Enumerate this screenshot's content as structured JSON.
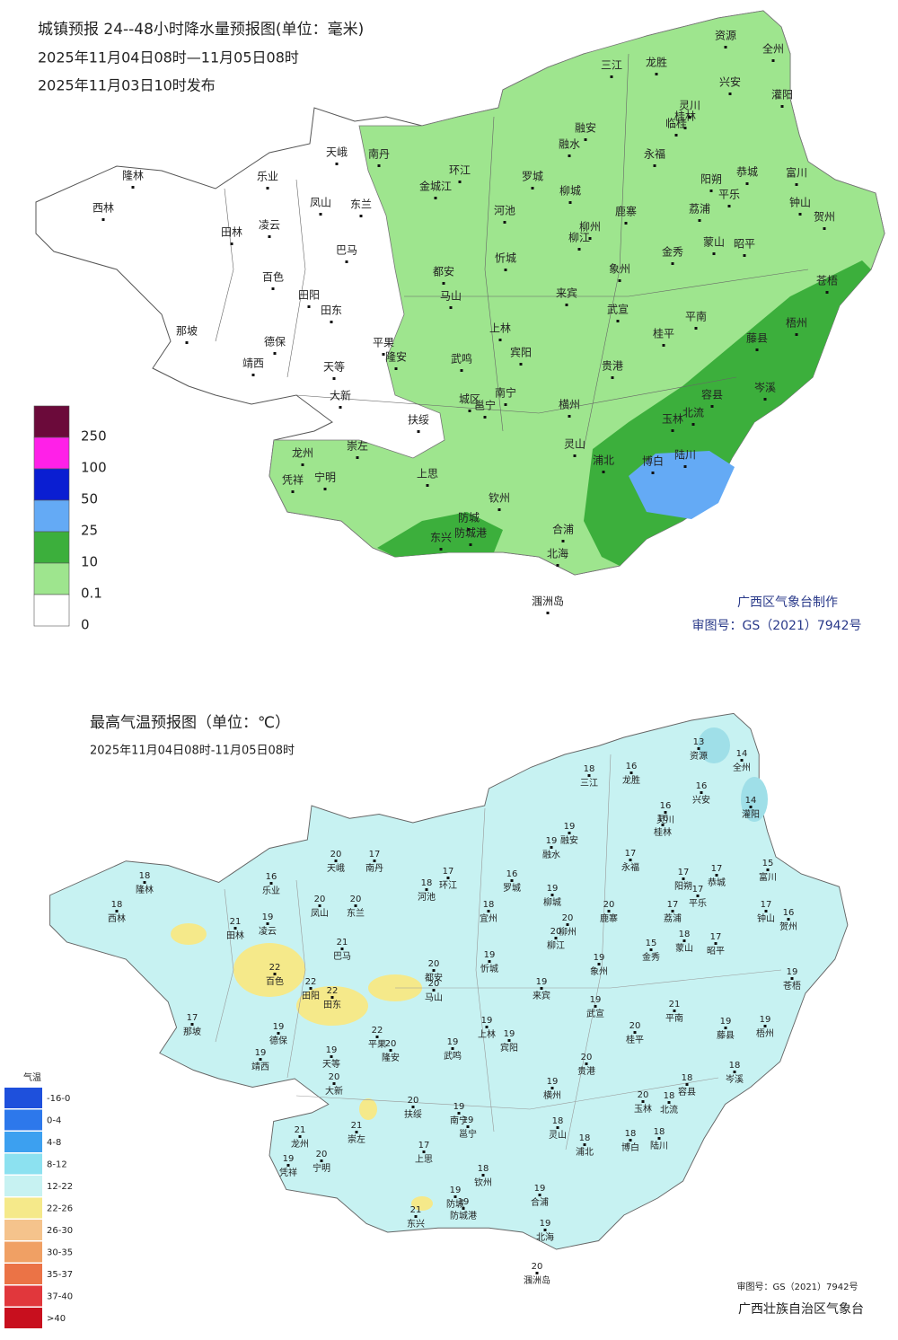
{
  "precipitation_map": {
    "title": "城镇预报 24--48小时降水量预报图(单位：毫米)",
    "period": "2025年11月04日08时—11月05日08时",
    "issued": "2025年11月03日10时发布",
    "legend": {
      "labels": [
        "250",
        "100",
        "50",
        "25",
        "10",
        "0.1",
        "0"
      ]
    },
    "cities": [
      "天峨",
      "南丹",
      "隆林",
      "乐业",
      "环江",
      "罗城",
      "西林",
      "凤山",
      "东兰",
      "金城江",
      "河池",
      "田林",
      "凌云",
      "巴马",
      "忻城",
      "百色",
      "都安",
      "马山",
      "田阳",
      "田东",
      "那坡",
      "德保",
      "平果",
      "隆安",
      "靖西",
      "天等",
      "大新",
      "武鸣",
      "宾阳",
      "上林",
      "城区",
      "南宁",
      "邕宁",
      "横州",
      "扶绥",
      "龙州",
      "崇左",
      "凭祥",
      "宁明",
      "上思",
      "钦州",
      "防城",
      "东兴",
      "防城港",
      "合浦",
      "北海",
      "灵山",
      "浦北",
      "博白",
      "陆川",
      "玉林",
      "北流",
      "容县",
      "岑溪",
      "藤县",
      "梧州",
      "苍梧",
      "贵港",
      "桂平",
      "平南",
      "武宣",
      "来宾",
      "象州",
      "金秀",
      "蒙山",
      "昭平",
      "荔浦",
      "平乐",
      "阳朔",
      "恭城",
      "富川",
      "钟山",
      "贺州",
      "柳城",
      "柳州",
      "柳江",
      "鹿寨",
      "融水",
      "融安",
      "三江",
      "龙胜",
      "资源",
      "全州",
      "兴安",
      "灌阳",
      "灵川",
      "桂林",
      "临桂",
      "永福",
      "涠洲岛"
    ],
    "credit": "广西区气象台制作",
    "approval": "审图号：GS（2021）7942号"
  },
  "temperature_map": {
    "title": "最高气温预报图（单位：℃）",
    "period": "2025年11月04日08时-11月05日08时",
    "legend": {
      "title": "气温",
      "labels": [
        "-16-0",
        "0-4",
        "4-8",
        "8-12",
        "12-22",
        "22-26",
        "26-30",
        "30-35",
        "35-37",
        "37-40",
        ">40"
      ]
    },
    "stations": [
      {
        "name": "资源",
        "value": 13
      },
      {
        "name": "全州",
        "value": 14
      },
      {
        "name": "三江",
        "value": 18
      },
      {
        "name": "龙胜",
        "value": 16
      },
      {
        "name": "兴安",
        "value": 16
      },
      {
        "name": "灌阳",
        "value": 14
      },
      {
        "name": "灵川",
        "value": 16
      },
      {
        "name": "桂林",
        "value": 16
      },
      {
        "name": "融安",
        "value": 19
      },
      {
        "name": "融水",
        "value": 19
      },
      {
        "name": "永福",
        "value": 17
      },
      {
        "name": "天峨",
        "value": 20
      },
      {
        "name": "南丹",
        "value": 17
      },
      {
        "name": "隆林",
        "value": 18
      },
      {
        "name": "乐业",
        "value": 16
      },
      {
        "name": "河池",
        "value": 18
      },
      {
        "name": "环江",
        "value": 17
      },
      {
        "name": "罗城",
        "value": 16
      },
      {
        "name": "恭城",
        "value": 17
      },
      {
        "name": "富川",
        "value": 15
      },
      {
        "name": "阳朔",
        "value": 17
      },
      {
        "name": "西林",
        "value": 18
      },
      {
        "name": "凤山",
        "value": 20
      },
      {
        "name": "东兰",
        "value": 20
      },
      {
        "name": "宜州",
        "value": 18
      },
      {
        "name": "柳城",
        "value": 19
      },
      {
        "name": "鹿寨",
        "value": 20
      },
      {
        "name": "平乐",
        "value": 17
      },
      {
        "name": "荔浦",
        "value": 17
      },
      {
        "name": "钟山",
        "value": 17
      },
      {
        "name": "贺州",
        "value": 16
      },
      {
        "name": "田林",
        "value": 21
      },
      {
        "name": "凌云",
        "value": 19
      },
      {
        "name": "巴马",
        "value": 21
      },
      {
        "name": "柳州",
        "value": 20
      },
      {
        "name": "柳江",
        "value": 20
      },
      {
        "name": "金秀",
        "value": 15
      },
      {
        "name": "蒙山",
        "value": 18
      },
      {
        "name": "昭平",
        "value": 17
      },
      {
        "name": "都安",
        "value": 20
      },
      {
        "name": "马山",
        "value": 20
      },
      {
        "name": "忻城",
        "value": 19
      },
      {
        "name": "象州",
        "value": 19
      },
      {
        "name": "苍梧",
        "value": 19
      },
      {
        "name": "百色",
        "value": 22
      },
      {
        "name": "田阳",
        "value": 22
      },
      {
        "name": "田东",
        "value": 22
      },
      {
        "name": "来宾",
        "value": 19
      },
      {
        "name": "武宣",
        "value": 19
      },
      {
        "name": "平南",
        "value": 21
      },
      {
        "name": "那坡",
        "value": 17
      },
      {
        "name": "德保",
        "value": 19
      },
      {
        "name": "靖西",
        "value": 19
      },
      {
        "name": "平果",
        "value": 22
      },
      {
        "name": "隆安",
        "value": 20
      },
      {
        "name": "天等",
        "value": 19
      },
      {
        "name": "上林",
        "value": 19
      },
      {
        "name": "宾阳",
        "value": 19
      },
      {
        "name": "武鸣",
        "value": 19
      },
      {
        "name": "桂平",
        "value": 20
      },
      {
        "name": "藤县",
        "value": 19
      },
      {
        "name": "梧州",
        "value": 19
      },
      {
        "name": "大新",
        "value": 20
      },
      {
        "name": "贵港",
        "value": 20
      },
      {
        "name": "岑溪",
        "value": 18
      },
      {
        "name": "扶绥",
        "value": 20
      },
      {
        "name": "南宁",
        "value": 19
      },
      {
        "name": "邕宁",
        "value": 19
      },
      {
        "name": "横州",
        "value": 19
      },
      {
        "name": "玉林",
        "value": 20
      },
      {
        "name": "容县",
        "value": 18
      },
      {
        "name": "北流",
        "value": 18
      },
      {
        "name": "龙州",
        "value": 21
      },
      {
        "name": "崇左",
        "value": 21
      },
      {
        "name": "凭祥",
        "value": 19
      },
      {
        "name": "宁明",
        "value": 20
      },
      {
        "name": "上思",
        "value": 17
      },
      {
        "name": "灵山",
        "value": 18
      },
      {
        "name": "浦北",
        "value": 18
      },
      {
        "name": "博白",
        "value": 18
      },
      {
        "name": "陆川",
        "value": 18
      },
      {
        "name": "钦州",
        "value": 18
      },
      {
        "name": "合浦",
        "value": 19
      },
      {
        "name": "防城",
        "value": 19
      },
      {
        "name": "防城港",
        "value": 19
      },
      {
        "name": "东兴",
        "value": 21
      },
      {
        "name": "北海",
        "value": 19
      },
      {
        "name": "涠洲岛",
        "value": 20
      }
    ],
    "approval": "审图号：GS（2021）7942号",
    "credit": "广西壮族自治区气象台"
  }
}
